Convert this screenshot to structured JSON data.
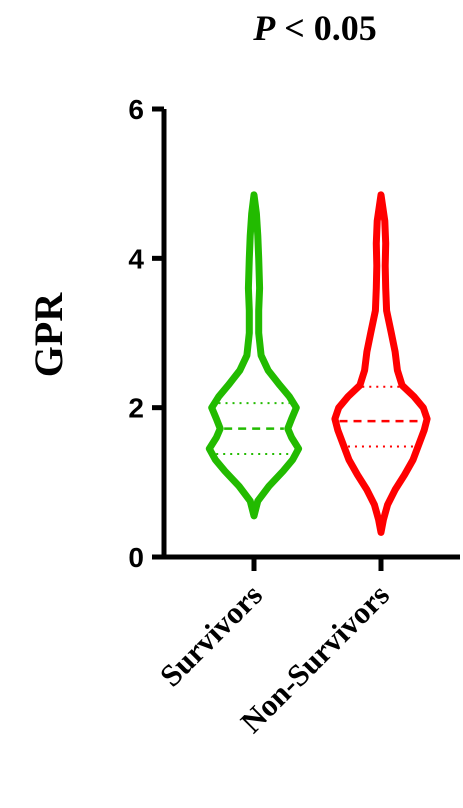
{
  "chart_data": {
    "type": "violin",
    "title_p": "P",
    "title_rest": " < 0.05",
    "ylabel": "GPR",
    "ylim": [
      0,
      6
    ],
    "yticks": [
      0,
      2,
      4,
      6
    ],
    "categories": [
      "Survivors",
      "Non-Survivors"
    ],
    "series": [
      {
        "category": "Survivors",
        "color": "#22bb00",
        "min": 0.55,
        "max": 4.85,
        "median": 1.72,
        "q1": 1.38,
        "q3": 2.06,
        "profile": [
          [
            0.55,
            0.0
          ],
          [
            0.75,
            0.08
          ],
          [
            0.95,
            0.32
          ],
          [
            1.15,
            0.62
          ],
          [
            1.3,
            0.82
          ],
          [
            1.45,
            0.95
          ],
          [
            1.6,
            0.8
          ],
          [
            1.72,
            0.72
          ],
          [
            1.85,
            0.8
          ],
          [
            2.0,
            0.9
          ],
          [
            2.15,
            0.75
          ],
          [
            2.3,
            0.55
          ],
          [
            2.5,
            0.3
          ],
          [
            2.7,
            0.15
          ],
          [
            3.0,
            0.1
          ],
          [
            3.3,
            0.1
          ],
          [
            3.6,
            0.12
          ],
          [
            4.0,
            0.1
          ],
          [
            4.3,
            0.08
          ],
          [
            4.6,
            0.05
          ],
          [
            4.85,
            0.0
          ]
        ]
      },
      {
        "category": "Non-Survivors",
        "color": "#ff0000",
        "min": 0.33,
        "max": 4.85,
        "median": 1.82,
        "q1": 1.48,
        "q3": 2.28,
        "profile": [
          [
            0.33,
            0.0
          ],
          [
            0.5,
            0.05
          ],
          [
            0.7,
            0.14
          ],
          [
            0.9,
            0.3
          ],
          [
            1.1,
            0.5
          ],
          [
            1.3,
            0.68
          ],
          [
            1.5,
            0.8
          ],
          [
            1.7,
            0.92
          ],
          [
            1.85,
            0.98
          ],
          [
            2.0,
            0.9
          ],
          [
            2.15,
            0.7
          ],
          [
            2.3,
            0.45
          ],
          [
            2.5,
            0.35
          ],
          [
            2.75,
            0.3
          ],
          [
            3.0,
            0.22
          ],
          [
            3.3,
            0.12
          ],
          [
            3.6,
            0.1
          ],
          [
            3.9,
            0.09
          ],
          [
            4.2,
            0.1
          ],
          [
            4.5,
            0.08
          ],
          [
            4.85,
            0.0
          ]
        ]
      }
    ]
  }
}
